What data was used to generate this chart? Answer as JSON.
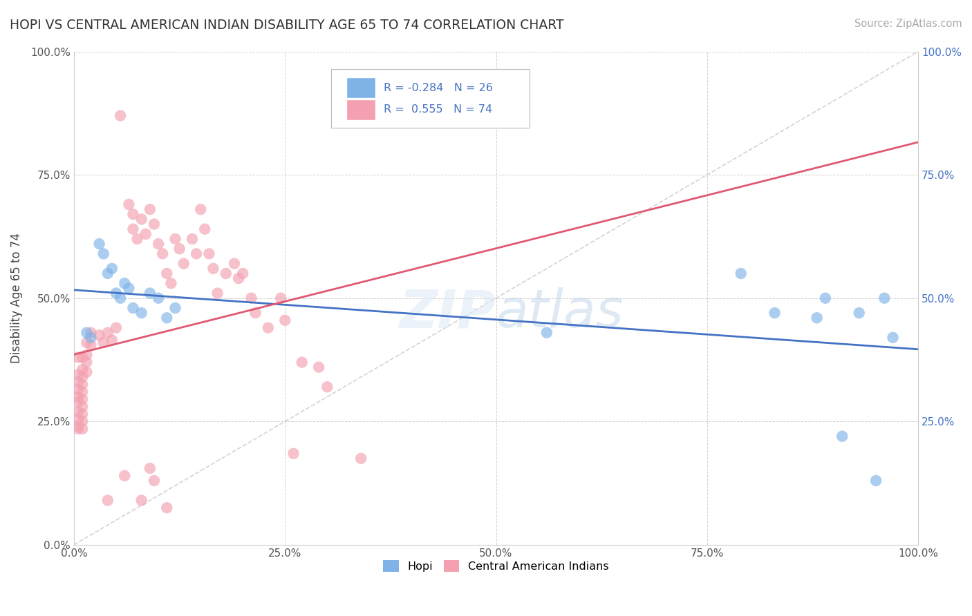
{
  "title": "HOPI VS CENTRAL AMERICAN INDIAN DISABILITY AGE 65 TO 74 CORRELATION CHART",
  "source": "Source: ZipAtlas.com",
  "ylabel": "Disability Age 65 to 74",
  "xlim": [
    0,
    1
  ],
  "ylim": [
    0,
    1
  ],
  "xticks": [
    0.0,
    0.25,
    0.5,
    0.75,
    1.0
  ],
  "yticks": [
    0.0,
    0.25,
    0.5,
    0.75,
    1.0
  ],
  "xticklabels": [
    "0.0%",
    "",
    "",
    "",
    ""
  ],
  "yticklabels": [
    "0.0%",
    "25.0%",
    "50.0%",
    "75.0%",
    ""
  ],
  "x_end_label": "100.0%",
  "y_end_label": "100.0%",
  "right_yticklabels": [
    "",
    "25.0%",
    "50.0%",
    "75.0%",
    "100.0%"
  ],
  "hopi_color": "#7fb3e8",
  "central_color": "#f4a0b0",
  "hopi_line_color": "#4472c4",
  "central_line_color": "#e05870",
  "diagonal_color": "#c8c8c8",
  "legend_R1": "-0.284",
  "legend_N1": "26",
  "legend_R2": " 0.555",
  "legend_N2": "74",
  "hopi_points": [
    [
      0.015,
      0.43
    ],
    [
      0.02,
      0.42
    ],
    [
      0.03,
      0.61
    ],
    [
      0.035,
      0.59
    ],
    [
      0.04,
      0.55
    ],
    [
      0.045,
      0.56
    ],
    [
      0.05,
      0.51
    ],
    [
      0.055,
      0.5
    ],
    [
      0.06,
      0.53
    ],
    [
      0.065,
      0.52
    ],
    [
      0.07,
      0.48
    ],
    [
      0.08,
      0.47
    ],
    [
      0.09,
      0.51
    ],
    [
      0.1,
      0.5
    ],
    [
      0.11,
      0.46
    ],
    [
      0.12,
      0.48
    ],
    [
      0.56,
      0.43
    ],
    [
      0.79,
      0.55
    ],
    [
      0.83,
      0.47
    ],
    [
      0.88,
      0.46
    ],
    [
      0.89,
      0.5
    ],
    [
      0.91,
      0.22
    ],
    [
      0.93,
      0.47
    ],
    [
      0.95,
      0.13
    ],
    [
      0.96,
      0.5
    ],
    [
      0.97,
      0.42
    ]
  ],
  "central_points": [
    [
      0.005,
      0.38
    ],
    [
      0.005,
      0.345
    ],
    [
      0.005,
      0.33
    ],
    [
      0.005,
      0.315
    ],
    [
      0.005,
      0.3
    ],
    [
      0.005,
      0.29
    ],
    [
      0.005,
      0.27
    ],
    [
      0.005,
      0.255
    ],
    [
      0.005,
      0.24
    ],
    [
      0.005,
      0.235
    ],
    [
      0.01,
      0.38
    ],
    [
      0.01,
      0.355
    ],
    [
      0.01,
      0.34
    ],
    [
      0.01,
      0.325
    ],
    [
      0.01,
      0.31
    ],
    [
      0.01,
      0.295
    ],
    [
      0.01,
      0.28
    ],
    [
      0.01,
      0.265
    ],
    [
      0.01,
      0.25
    ],
    [
      0.01,
      0.235
    ],
    [
      0.015,
      0.41
    ],
    [
      0.015,
      0.385
    ],
    [
      0.015,
      0.37
    ],
    [
      0.015,
      0.35
    ],
    [
      0.02,
      0.43
    ],
    [
      0.02,
      0.405
    ],
    [
      0.03,
      0.425
    ],
    [
      0.035,
      0.41
    ],
    [
      0.04,
      0.43
    ],
    [
      0.045,
      0.415
    ],
    [
      0.05,
      0.44
    ],
    [
      0.055,
      0.87
    ],
    [
      0.065,
      0.69
    ],
    [
      0.07,
      0.67
    ],
    [
      0.07,
      0.64
    ],
    [
      0.075,
      0.62
    ],
    [
      0.08,
      0.66
    ],
    [
      0.085,
      0.63
    ],
    [
      0.09,
      0.68
    ],
    [
      0.095,
      0.65
    ],
    [
      0.1,
      0.61
    ],
    [
      0.105,
      0.59
    ],
    [
      0.11,
      0.55
    ],
    [
      0.115,
      0.53
    ],
    [
      0.12,
      0.62
    ],
    [
      0.125,
      0.6
    ],
    [
      0.13,
      0.57
    ],
    [
      0.14,
      0.62
    ],
    [
      0.145,
      0.59
    ],
    [
      0.15,
      0.68
    ],
    [
      0.155,
      0.64
    ],
    [
      0.16,
      0.59
    ],
    [
      0.165,
      0.56
    ],
    [
      0.17,
      0.51
    ],
    [
      0.18,
      0.55
    ],
    [
      0.19,
      0.57
    ],
    [
      0.195,
      0.54
    ],
    [
      0.2,
      0.55
    ],
    [
      0.21,
      0.5
    ],
    [
      0.215,
      0.47
    ],
    [
      0.23,
      0.44
    ],
    [
      0.245,
      0.5
    ],
    [
      0.25,
      0.455
    ],
    [
      0.27,
      0.37
    ],
    [
      0.29,
      0.36
    ],
    [
      0.3,
      0.32
    ],
    [
      0.04,
      0.09
    ],
    [
      0.06,
      0.14
    ],
    [
      0.08,
      0.09
    ],
    [
      0.09,
      0.155
    ],
    [
      0.095,
      0.13
    ],
    [
      0.11,
      0.075
    ],
    [
      0.26,
      0.185
    ],
    [
      0.34,
      0.175
    ]
  ]
}
